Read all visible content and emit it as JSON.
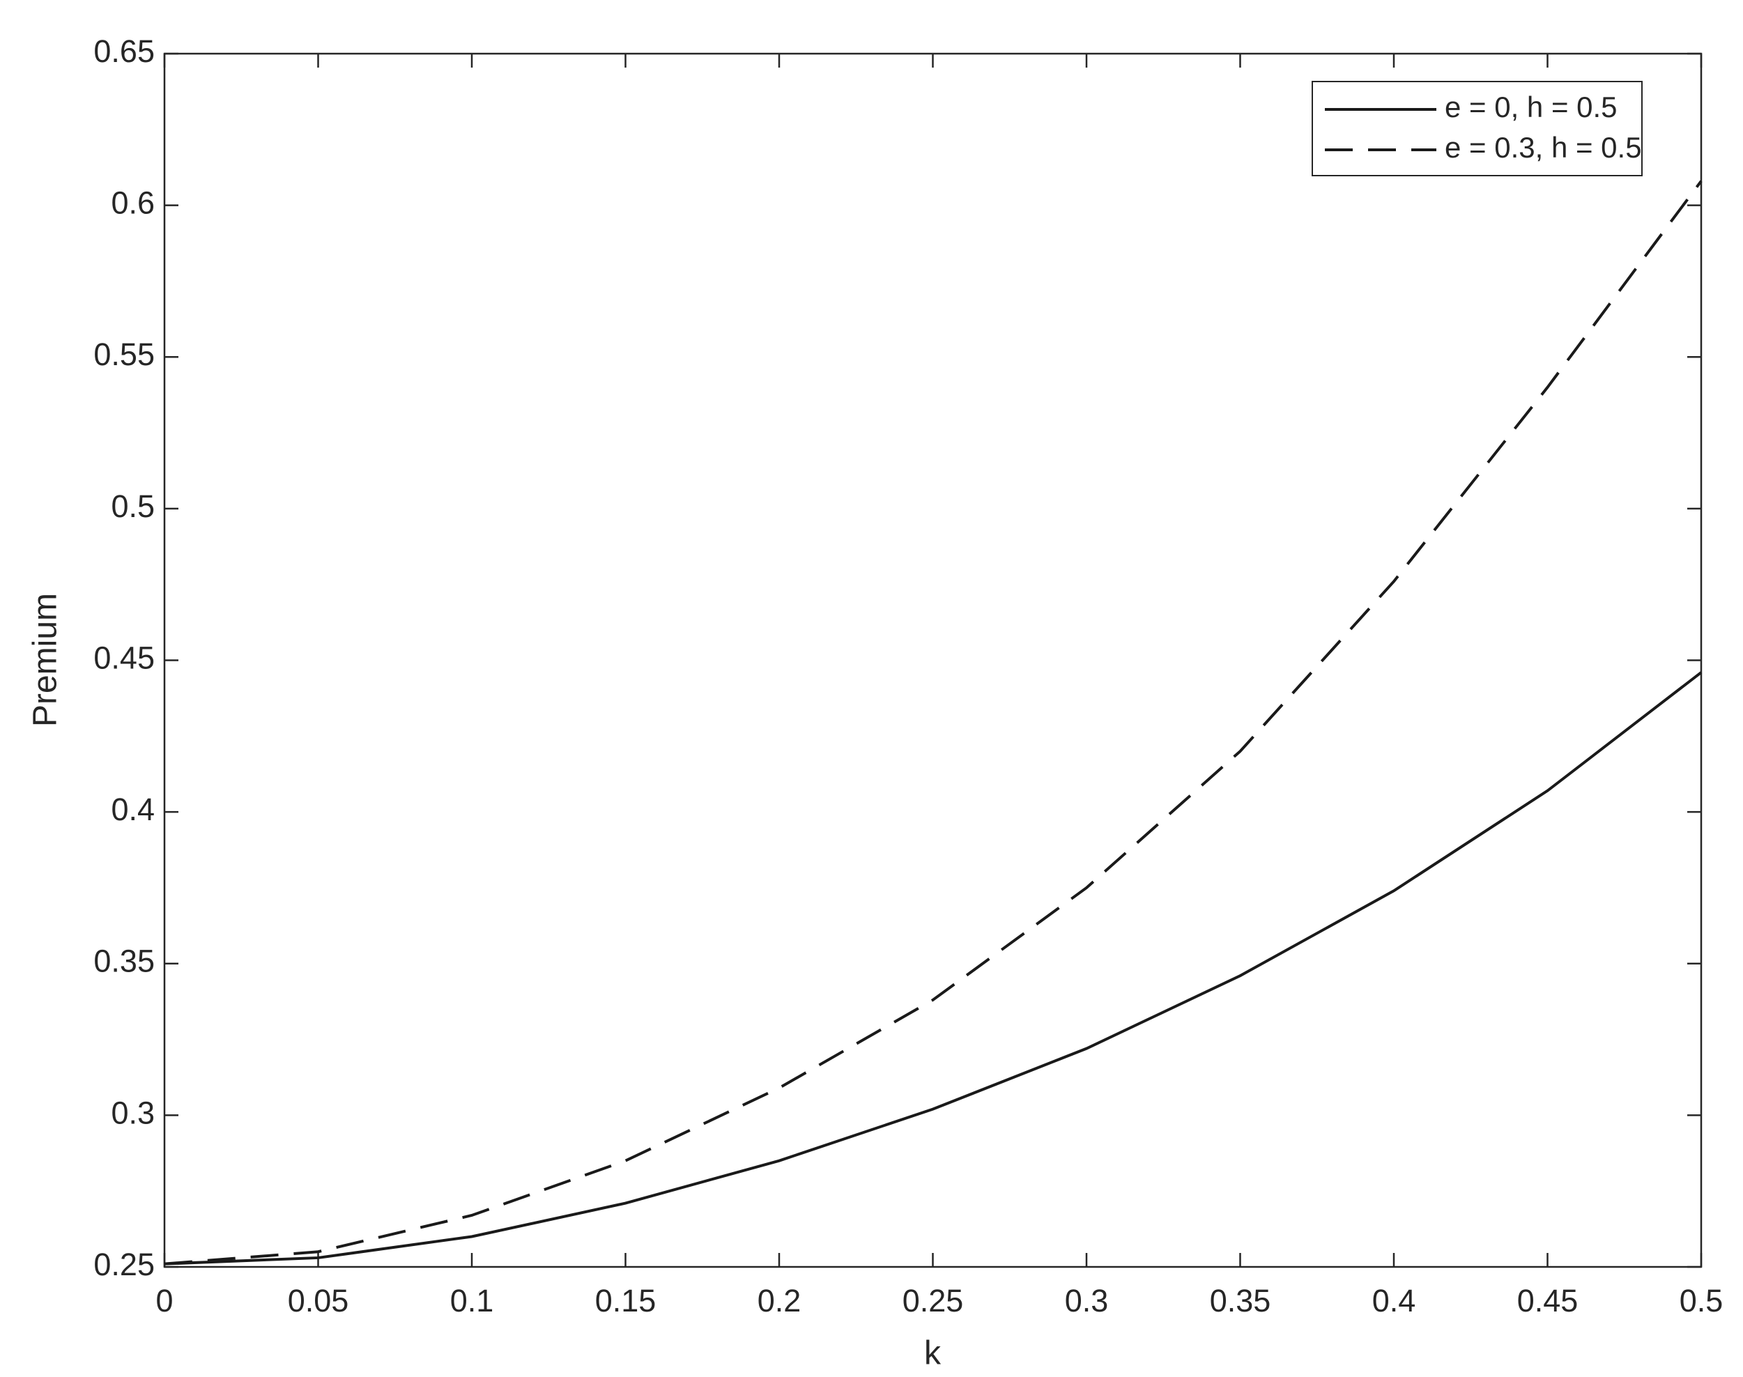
{
  "chart_data": {
    "type": "line",
    "x_label": "k",
    "y_label": "Premium",
    "x": [
      0,
      0.05,
      0.1,
      0.15,
      0.2,
      0.25,
      0.3,
      0.35,
      0.4,
      0.45,
      0.5
    ],
    "series": [
      {
        "name": "e = 0, h = 0.5",
        "color": "#1a1a1a",
        "line_style": "solid",
        "values": [
          0.251,
          0.253,
          0.26,
          0.271,
          0.285,
          0.302,
          0.322,
          0.346,
          0.374,
          0.407,
          0.446
        ]
      },
      {
        "name": "e = 0.3, h = 0.5",
        "color": "#1a1a1a",
        "line_style": "dashed",
        "values": [
          0.251,
          0.255,
          0.267,
          0.285,
          0.309,
          0.338,
          0.375,
          0.42,
          0.476,
          0.54,
          0.608
        ]
      }
    ],
    "xlim": [
      0,
      0.5
    ],
    "xticks": [
      0,
      0.05,
      0.1,
      0.15,
      0.2,
      0.25,
      0.3,
      0.35,
      0.4,
      0.45,
      0.5
    ],
    "ylim": [
      0.25,
      0.65
    ],
    "yticks": [
      0.25,
      0.3,
      0.35,
      0.4,
      0.45,
      0.5,
      0.55,
      0.6,
      0.65
    ],
    "grid": false,
    "legend_position": "northeast"
  }
}
